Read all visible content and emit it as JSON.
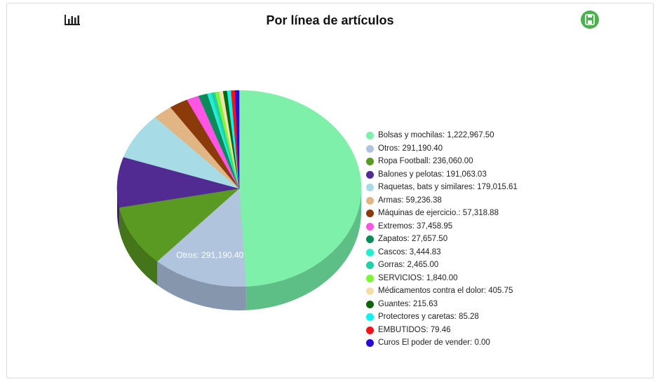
{
  "chart_data": {
    "type": "pie",
    "title": "Por línea de artículos",
    "slices": [
      {
        "label": "Bolsas y mochilas",
        "value": 1222967.5,
        "display": "1,222,967.50",
        "color": "#7ef0a9",
        "side": "#5dbf86"
      },
      {
        "label": "Otros",
        "value": 291190.4,
        "display": "291,190.40",
        "color": "#b0c4de",
        "side": "#8696ad"
      },
      {
        "label": "Ropa Football",
        "value": 236060.0,
        "display": "236,060.00",
        "color": "#5a9a22",
        "side": "#44751a"
      },
      {
        "label": "Balones y pelotas",
        "value": 191063.03,
        "display": "191,063.03",
        "color": "#522b92",
        "side": "#3c1f6c"
      },
      {
        "label": "Raquetas, bats y similares",
        "value": 179015.61,
        "display": "179,015.61",
        "color": "#a7dce6",
        "side": "#84b0b8"
      },
      {
        "label": "Armas",
        "value": 59236.38,
        "display": "59,236.38",
        "color": "#e2b585",
        "side": "#b48f68"
      },
      {
        "label": "Máquinas de ejercicio.",
        "value": 57318.88,
        "display": "57,318.88",
        "color": "#8b3a0a",
        "side": "#6a2c07"
      },
      {
        "label": "Extremos",
        "value": 37458.95,
        "display": "37,458.95",
        "color": "#ff55e4",
        "side": "#c842b2"
      },
      {
        "label": "Zapatos",
        "value": 27657.5,
        "display": "27,657.50",
        "color": "#0e8a5a",
        "side": "#0a6a45"
      },
      {
        "label": "Cascos",
        "value": 3444.83,
        "display": "3,444.83",
        "color": "#22eed0",
        "side": "#1abaa2"
      },
      {
        "label": "Gorras",
        "value": 2465.0,
        "display": "2,465.00",
        "color": "#23cfa6",
        "side": "#1ba283"
      },
      {
        "label": "SERVICIOS",
        "value": 1840.0,
        "display": "1,840.00",
        "color": "#7cf53a",
        "side": "#61c02d"
      },
      {
        "label": "Médicamentos contra el dolor",
        "value": 405.75,
        "display": "405.75",
        "color": "#f4dfaa",
        "side": "#c4b288"
      },
      {
        "label": "Guantes",
        "value": 215.63,
        "display": "215.63",
        "color": "#0d640d",
        "side": "#094a09"
      },
      {
        "label": "Protectores y caretas",
        "value": 85.28,
        "display": "85.28",
        "color": "#10f2f2",
        "side": "#0cbebe"
      },
      {
        "label": "EMBUTIDOS",
        "value": 79.46,
        "display": "79.46",
        "color": "#f41414",
        "side": "#bf0f0f"
      },
      {
        "label": "Curos El poder de vender",
        "value": 0.0,
        "display": "0.00",
        "color": "#2a0ad6",
        "side": "#1f07a6"
      }
    ],
    "data_labels": [
      {
        "label": "Otros",
        "display": "291,190.40"
      }
    ],
    "legend_position": "right"
  },
  "toolbar": {
    "chart_type_icon": "bar-chart-icon",
    "export_icon": "export-document-icon",
    "export_color": "#4caf50"
  }
}
